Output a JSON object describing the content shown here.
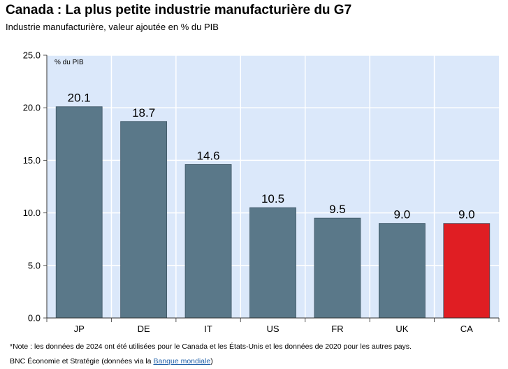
{
  "header": {
    "title": "Canada : La plus petite industrie manufacturière du G7",
    "subtitle": "Industrie manufacturière, valeur ajoutée en % du PIB"
  },
  "footer": {
    "note": "*Note : les données de 2024 ont été utilisées pour le Canada et les États-Unis et les données de 2020 pour les autres pays.",
    "source_prefix": "BNC Économie et Stratégie (données via la ",
    "source_link": "Banque mondiale",
    "source_suffix": ")"
  },
  "chart_data": {
    "type": "bar",
    "title": "Canada : La plus petite industrie manufacturière du G7",
    "subtitle": "Industrie manufacturière, valeur ajoutée en % du PIB",
    "ylabel": "% du PIB",
    "xlabel": "",
    "categories": [
      "JP",
      "DE",
      "IT",
      "US",
      "FR",
      "UK",
      "CA"
    ],
    "values": [
      20.1,
      18.7,
      14.6,
      10.5,
      9.5,
      9.0,
      9.0
    ],
    "value_labels": [
      "20.1",
      "18.7",
      "14.6",
      "10.5",
      "9.5",
      "9.0",
      "9.0"
    ],
    "ylim": [
      0,
      25
    ],
    "yticks": [
      "0.0",
      "5.0",
      "10.0",
      "15.0",
      "20.0",
      "25.0"
    ],
    "grid": true,
    "colors": {
      "bar": "#5a7889",
      "highlight": "#e01e23",
      "plot_background": "#dbe8fa",
      "gridline": "#ffffff"
    },
    "highlight_category": "CA"
  }
}
